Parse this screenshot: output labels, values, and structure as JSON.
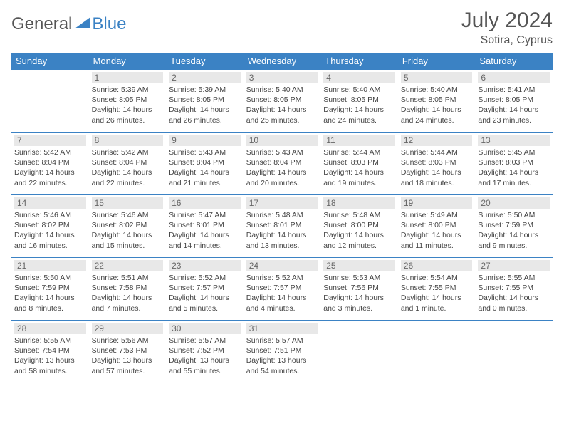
{
  "logo": {
    "part1": "General",
    "part2": "Blue"
  },
  "title": "July 2024",
  "location": "Sotira, Cyprus",
  "colors": {
    "accent": "#3b82c4",
    "daynum_bg": "#e8e8e8",
    "text": "#444"
  },
  "weekdays": [
    "Sunday",
    "Monday",
    "Tuesday",
    "Wednesday",
    "Thursday",
    "Friday",
    "Saturday"
  ],
  "grid": {
    "rows": 5,
    "cols": 7,
    "start_offset": 1,
    "days_in_month": 31
  },
  "days": {
    "1": {
      "sunrise": "5:39 AM",
      "sunset": "8:05 PM",
      "daylight": "14 hours and 26 minutes."
    },
    "2": {
      "sunrise": "5:39 AM",
      "sunset": "8:05 PM",
      "daylight": "14 hours and 26 minutes."
    },
    "3": {
      "sunrise": "5:40 AM",
      "sunset": "8:05 PM",
      "daylight": "14 hours and 25 minutes."
    },
    "4": {
      "sunrise": "5:40 AM",
      "sunset": "8:05 PM",
      "daylight": "14 hours and 24 minutes."
    },
    "5": {
      "sunrise": "5:40 AM",
      "sunset": "8:05 PM",
      "daylight": "14 hours and 24 minutes."
    },
    "6": {
      "sunrise": "5:41 AM",
      "sunset": "8:05 PM",
      "daylight": "14 hours and 23 minutes."
    },
    "7": {
      "sunrise": "5:42 AM",
      "sunset": "8:04 PM",
      "daylight": "14 hours and 22 minutes."
    },
    "8": {
      "sunrise": "5:42 AM",
      "sunset": "8:04 PM",
      "daylight": "14 hours and 22 minutes."
    },
    "9": {
      "sunrise": "5:43 AM",
      "sunset": "8:04 PM",
      "daylight": "14 hours and 21 minutes."
    },
    "10": {
      "sunrise": "5:43 AM",
      "sunset": "8:04 PM",
      "daylight": "14 hours and 20 minutes."
    },
    "11": {
      "sunrise": "5:44 AM",
      "sunset": "8:03 PM",
      "daylight": "14 hours and 19 minutes."
    },
    "12": {
      "sunrise": "5:44 AM",
      "sunset": "8:03 PM",
      "daylight": "14 hours and 18 minutes."
    },
    "13": {
      "sunrise": "5:45 AM",
      "sunset": "8:03 PM",
      "daylight": "14 hours and 17 minutes."
    },
    "14": {
      "sunrise": "5:46 AM",
      "sunset": "8:02 PM",
      "daylight": "14 hours and 16 minutes."
    },
    "15": {
      "sunrise": "5:46 AM",
      "sunset": "8:02 PM",
      "daylight": "14 hours and 15 minutes."
    },
    "16": {
      "sunrise": "5:47 AM",
      "sunset": "8:01 PM",
      "daylight": "14 hours and 14 minutes."
    },
    "17": {
      "sunrise": "5:48 AM",
      "sunset": "8:01 PM",
      "daylight": "14 hours and 13 minutes."
    },
    "18": {
      "sunrise": "5:48 AM",
      "sunset": "8:00 PM",
      "daylight": "14 hours and 12 minutes."
    },
    "19": {
      "sunrise": "5:49 AM",
      "sunset": "8:00 PM",
      "daylight": "14 hours and 11 minutes."
    },
    "20": {
      "sunrise": "5:50 AM",
      "sunset": "7:59 PM",
      "daylight": "14 hours and 9 minutes."
    },
    "21": {
      "sunrise": "5:50 AM",
      "sunset": "7:59 PM",
      "daylight": "14 hours and 8 minutes."
    },
    "22": {
      "sunrise": "5:51 AM",
      "sunset": "7:58 PM",
      "daylight": "14 hours and 7 minutes."
    },
    "23": {
      "sunrise": "5:52 AM",
      "sunset": "7:57 PM",
      "daylight": "14 hours and 5 minutes."
    },
    "24": {
      "sunrise": "5:52 AM",
      "sunset": "7:57 PM",
      "daylight": "14 hours and 4 minutes."
    },
    "25": {
      "sunrise": "5:53 AM",
      "sunset": "7:56 PM",
      "daylight": "14 hours and 3 minutes."
    },
    "26": {
      "sunrise": "5:54 AM",
      "sunset": "7:55 PM",
      "daylight": "14 hours and 1 minute."
    },
    "27": {
      "sunrise": "5:55 AM",
      "sunset": "7:55 PM",
      "daylight": "14 hours and 0 minutes."
    },
    "28": {
      "sunrise": "5:55 AM",
      "sunset": "7:54 PM",
      "daylight": "13 hours and 58 minutes."
    },
    "29": {
      "sunrise": "5:56 AM",
      "sunset": "7:53 PM",
      "daylight": "13 hours and 57 minutes."
    },
    "30": {
      "sunrise": "5:57 AM",
      "sunset": "7:52 PM",
      "daylight": "13 hours and 55 minutes."
    },
    "31": {
      "sunrise": "5:57 AM",
      "sunset": "7:51 PM",
      "daylight": "13 hours and 54 minutes."
    }
  },
  "labels": {
    "sunrise": "Sunrise:",
    "sunset": "Sunset:",
    "daylight": "Daylight:"
  }
}
